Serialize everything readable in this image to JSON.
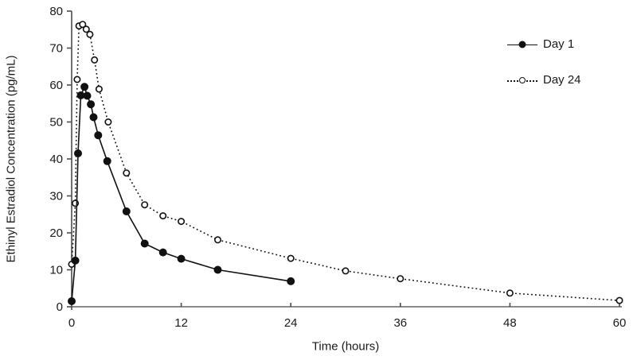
{
  "figure": {
    "background": "#ffffff",
    "text_color": "#1a1a1a",
    "series_color": "#111111",
    "axis_color": "#8a8a8a"
  },
  "chart_data": {
    "type": "line",
    "title": "",
    "xlabel": "Time (hours)",
    "ylabel": "Ethinyl Estradiol Concentration (pg/mL)",
    "xlim": [
      0,
      60
    ],
    "ylim": [
      0,
      80
    ],
    "x_ticks": [
      0,
      12,
      24,
      36,
      48,
      60
    ],
    "y_ticks": [
      0,
      10,
      20,
      30,
      40,
      50,
      60,
      70,
      80
    ],
    "grid": false,
    "legend_position": "top-right",
    "series": [
      {
        "name": "Day 1",
        "marker": "filled-circle",
        "line_style": "solid",
        "points": [
          [
            0,
            1.5
          ],
          [
            0.4,
            12.5
          ],
          [
            0.7,
            41.5
          ],
          [
            1,
            57.2
          ],
          [
            1.4,
            59.5
          ],
          [
            1.7,
            57.1
          ],
          [
            2.1,
            54.8
          ],
          [
            2.4,
            51.3
          ],
          [
            2.9,
            46.4
          ],
          [
            3.9,
            39.4
          ],
          [
            6,
            25.8
          ],
          [
            8,
            17.1
          ],
          [
            10,
            14.7
          ],
          [
            12,
            13
          ],
          [
            16,
            10
          ],
          [
            24,
            6.9
          ]
        ]
      },
      {
        "name": "Day 24",
        "marker": "open-circle",
        "line_style": "dotted",
        "points": [
          [
            0,
            11.5
          ],
          [
            0.4,
            28
          ],
          [
            0.6,
            61.5
          ],
          [
            0.8,
            76
          ],
          [
            1.2,
            76.4
          ],
          [
            1.6,
            75.1
          ],
          [
            2,
            73.7
          ],
          [
            2.5,
            66.8
          ],
          [
            3,
            58.9
          ],
          [
            4,
            50
          ],
          [
            6,
            36.2
          ],
          [
            8,
            27.6
          ],
          [
            10,
            24.6
          ],
          [
            12,
            23.1
          ],
          [
            16,
            18.1
          ],
          [
            24,
            13.1
          ],
          [
            30,
            9.7
          ],
          [
            36,
            7.6
          ],
          [
            48,
            3.7
          ],
          [
            60,
            1.7
          ]
        ]
      }
    ]
  }
}
